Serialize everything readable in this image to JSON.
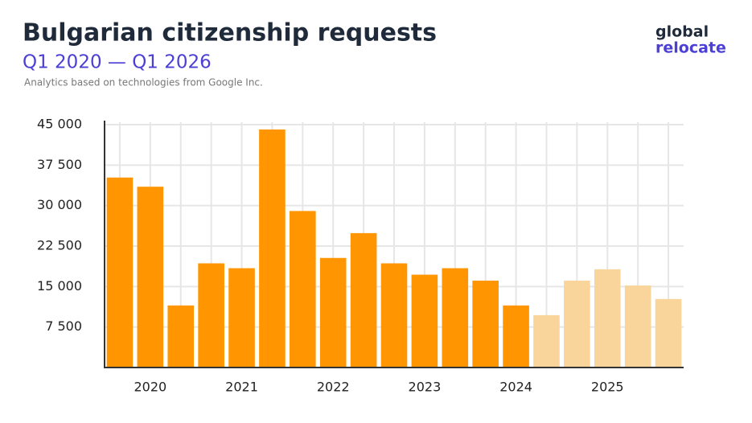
{
  "chart_data": {
    "type": "bar",
    "title": "Bulgarian citizenship requests",
    "subtitle": "Q1 2020 — Q1 2026",
    "note": "Analytics based on technologies from Google Inc.",
    "logo": [
      "global",
      "relocate"
    ],
    "categories": [
      null,
      "2020",
      null,
      null,
      "2021",
      null,
      null,
      "2022",
      null,
      null,
      "2023",
      null,
      null,
      "2024",
      null,
      null,
      "2025",
      null,
      null
    ],
    "values": [
      35200,
      33500,
      11500,
      19300,
      18400,
      44100,
      29000,
      20300,
      24900,
      19300,
      17200,
      18400,
      16100,
      11500,
      9700,
      16100,
      18200,
      15200,
      12700
    ],
    "colors": [
      "#ff9500",
      "#ff9500",
      "#ff9500",
      "#ff9500",
      "#ff9500",
      "#ff9500",
      "#ff9500",
      "#ff9500",
      "#ff9500",
      "#ff9500",
      "#ff9500",
      "#ff9500",
      "#ff9500",
      "#ff9500",
      "#f9d49b",
      "#f9d49b",
      "#f9d49b",
      "#f9d49b",
      "#f9d49b"
    ],
    "ylim": [
      0,
      45000
    ],
    "yticks": [
      {
        "value": 7500,
        "label": "7 500"
      },
      {
        "value": 15000,
        "label": "15 000"
      },
      {
        "value": 22500,
        "label": "22 500"
      },
      {
        "value": 30000,
        "label": "30 000"
      },
      {
        "value": 37500,
        "label": "37 500"
      },
      {
        "value": 45000,
        "label": "45 000"
      }
    ],
    "grid": true
  }
}
